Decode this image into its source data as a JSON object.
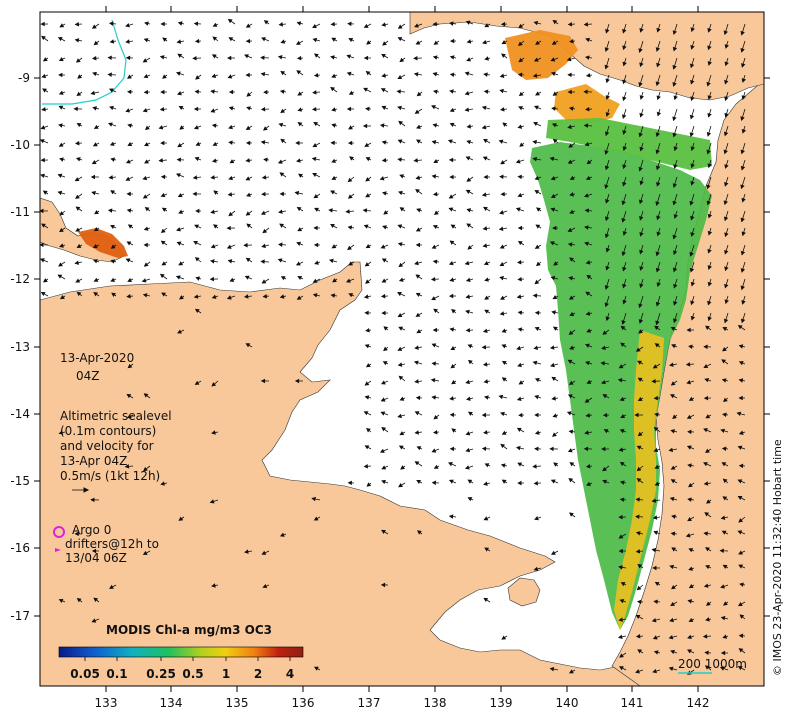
{
  "map": {
    "date": "13-Apr-2020",
    "time": "04Z",
    "legend_lines": [
      "Altimetric sealevel",
      "(0.1m contours)",
      "and velocity for",
      "13-Apr 04Z",
      "0.5m/s (1kt 12h)"
    ],
    "argo_label": "Argo 0",
    "drifter_lines": [
      "drifters@12h to",
      "13/04 06Z"
    ],
    "colorbar_title": "MODIS Chl-a mg/m3 OC3",
    "colorbar_ticks": [
      "0.05",
      "0.1",
      "0.25",
      "0.5",
      "1",
      "2",
      "4"
    ],
    "colorbar_colors": [
      "#0a1a8a",
      "#1060d0",
      "#10b0c0",
      "#20c060",
      "#b0d020",
      "#f0d010",
      "#f08010",
      "#c02010",
      "#902010"
    ],
    "depth_label": "200  1000m",
    "credit": "© IMOS 23-Apr-2020 11:32:40 Hobart time",
    "lon_ticks": [
      "133",
      "134",
      "135",
      "136",
      "137",
      "138",
      "139",
      "140",
      "141",
      "142"
    ],
    "lat_ticks": [
      "-9",
      "-10",
      "-11",
      "-12",
      "-13",
      "-14",
      "-15",
      "-16",
      "-17"
    ],
    "colors": {
      "land": "#f8c89a",
      "ocean": "#ffffff",
      "argo": "#e020e0",
      "depth_contour": "#20d0c8"
    }
  }
}
